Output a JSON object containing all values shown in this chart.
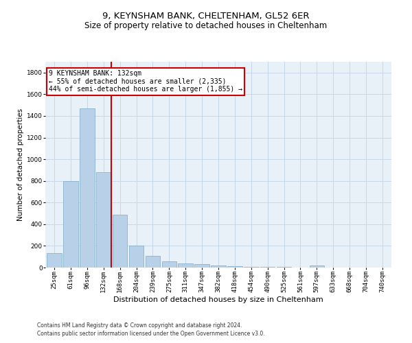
{
  "title1": "9, KEYNSHAM BANK, CHELTENHAM, GL52 6ER",
  "title2": "Size of property relative to detached houses in Cheltenham",
  "xlabel": "Distribution of detached houses by size in Cheltenham",
  "ylabel": "Number of detached properties",
  "categories": [
    "25sqm",
    "61sqm",
    "96sqm",
    "132sqm",
    "168sqm",
    "204sqm",
    "239sqm",
    "275sqm",
    "311sqm",
    "347sqm",
    "382sqm",
    "418sqm",
    "454sqm",
    "490sqm",
    "525sqm",
    "561sqm",
    "597sqm",
    "633sqm",
    "668sqm",
    "704sqm",
    "740sqm"
  ],
  "values": [
    130,
    800,
    1470,
    880,
    490,
    200,
    105,
    60,
    40,
    30,
    20,
    10,
    8,
    5,
    5,
    0,
    20,
    0,
    0,
    0,
    0
  ],
  "bar_color": "#b8d0e8",
  "bar_edge_color": "#7aaac8",
  "highlight_index": 3,
  "annotation_line1": "9 KEYNSHAM BANK: 132sqm",
  "annotation_line2": "← 55% of detached houses are smaller (2,335)",
  "annotation_line3": "44% of semi-detached houses are larger (1,855) →",
  "annotation_box_color": "#ffffff",
  "annotation_border_color": "#cc0000",
  "ylim": [
    0,
    1900
  ],
  "yticks": [
    0,
    200,
    400,
    600,
    800,
    1000,
    1200,
    1400,
    1600,
    1800
  ],
  "footer1": "Contains HM Land Registry data © Crown copyright and database right 2024.",
  "footer2": "Contains public sector information licensed under the Open Government Licence v3.0.",
  "bg_color": "#ffffff",
  "plot_bg_color": "#e8f0f8",
  "grid_color": "#c8d8ea",
  "title1_fontsize": 9.5,
  "title2_fontsize": 8.5,
  "tick_fontsize": 6.5,
  "xlabel_fontsize": 8,
  "ylabel_fontsize": 7.5,
  "footer_fontsize": 5.5,
  "annot_fontsize": 7.0
}
